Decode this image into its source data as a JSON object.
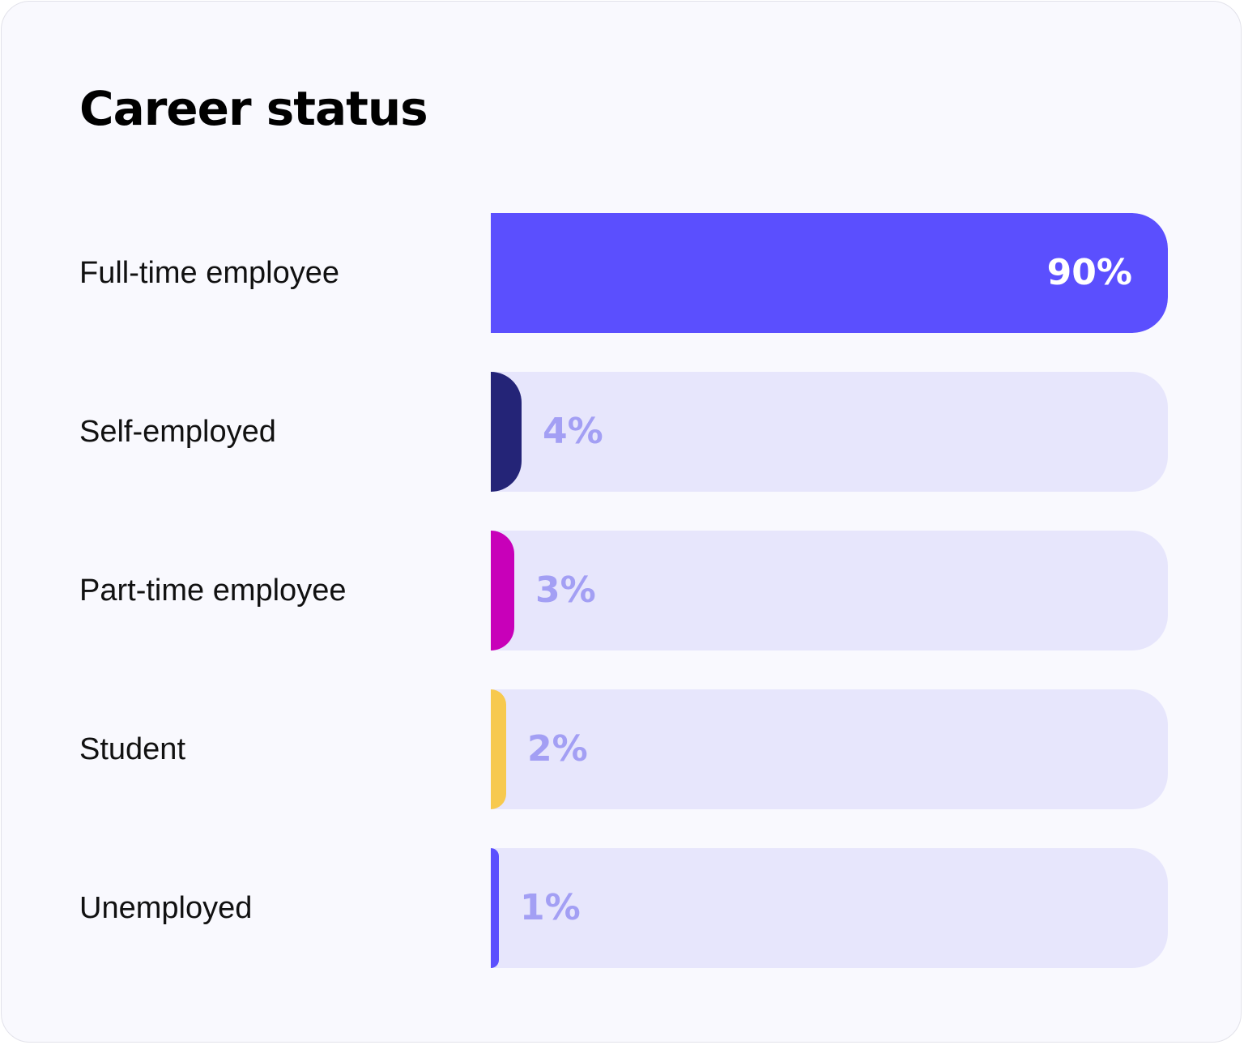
{
  "chart_data": {
    "type": "bar",
    "orientation": "horizontal",
    "title": "Career status",
    "categories": [
      "Full-time employee",
      "Self-employed",
      "Part-time employee",
      "Student",
      "Unemployed"
    ],
    "values": [
      90,
      4,
      3,
      2,
      1
    ],
    "value_labels": [
      "90%",
      "4%",
      "3%",
      "2%",
      "1%"
    ],
    "bar_colors": [
      "#5b4ffe",
      "#242477",
      "#c800b9",
      "#f7c94e",
      "#5b4ffe"
    ],
    "track_color": "#e7e6fc",
    "inside_label_color": "#ffffff",
    "outside_label_color": "#a39ff4",
    "xlim": [
      0,
      90
    ],
    "grid": false,
    "legend": "none"
  }
}
